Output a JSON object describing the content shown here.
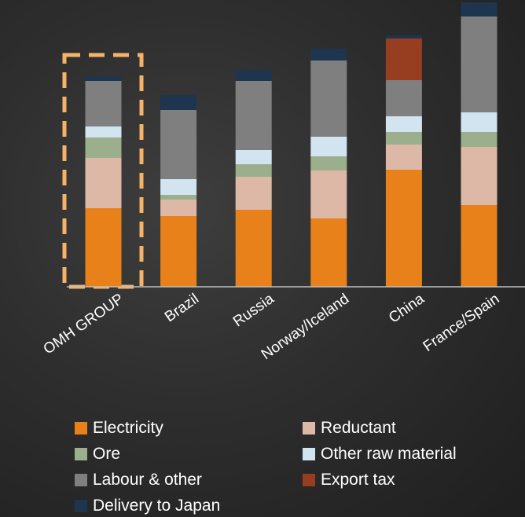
{
  "chart_data": {
    "type": "bar",
    "stacked": true,
    "categories": [
      "OMH GROUP",
      "Brazil",
      "Russia",
      "Norway/Iceland",
      "China",
      "France/Spain"
    ],
    "highlighted_category": "OMH GROUP",
    "ylim": [
      0,
      360
    ],
    "grid": false,
    "legend_position": "bottom",
    "series": [
      {
        "name": "Electricity",
        "color": "#E8811A",
        "values": [
          100,
          90,
          98,
          87,
          149,
          104
        ]
      },
      {
        "name": "Reductant",
        "color": "#DDB8A6",
        "values": [
          64,
          21,
          42,
          61,
          32,
          74
        ]
      },
      {
        "name": "Ore",
        "color": "#9CAF8C",
        "values": [
          26,
          6,
          16,
          18,
          16,
          19
        ]
      },
      {
        "name": "Other raw material",
        "color": "#D2E4EF",
        "values": [
          14,
          20,
          18,
          25,
          20,
          25
        ]
      },
      {
        "name": "Labour & other",
        "color": "#7F7F7F",
        "values": [
          58,
          88,
          88,
          97,
          46,
          122
        ]
      },
      {
        "name": "Export tax",
        "color": "#963E1F",
        "values": [
          0,
          0,
          0,
          0,
          53,
          0
        ]
      },
      {
        "name": "Delivery to Japan",
        "color": "#1E3550",
        "values": [
          6,
          19,
          14,
          15,
          4,
          18
        ]
      }
    ]
  },
  "legend": [
    {
      "label": "Electricity",
      "color": "#E8811A"
    },
    {
      "label": "Reductant",
      "color": "#DDB8A6"
    },
    {
      "label": "Ore",
      "color": "#9CAF8C"
    },
    {
      "label": "Other raw material",
      "color": "#D2E4EF"
    },
    {
      "label": "Labour & other",
      "color": "#7F7F7F"
    },
    {
      "label": "Export tax",
      "color": "#963E1F"
    },
    {
      "label": "Delivery to Japan",
      "color": "#1E3550"
    }
  ]
}
